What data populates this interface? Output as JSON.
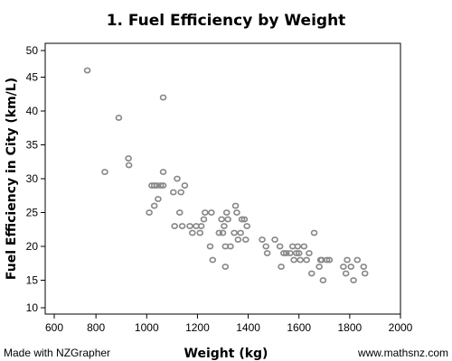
{
  "chart_data": {
    "type": "scatter",
    "title": "1. Fuel Efficiency by Weight",
    "xlabel": "Weight (kg)",
    "ylabel": "Fuel Efficiency in City (km/L)",
    "xlim": [
      600,
      2000
    ],
    "ylim": [
      10,
      50
    ],
    "xticks": [
      600,
      800,
      1000,
      1200,
      1400,
      1600,
      1800,
      2000
    ],
    "yticks": [
      10,
      15,
      20,
      25,
      30,
      35,
      40,
      45,
      50
    ],
    "grid": false,
    "marker_color": "#888888",
    "points": [
      [
        766,
        46
      ],
      [
        835,
        31
      ],
      [
        890,
        39
      ],
      [
        928,
        33
      ],
      [
        930,
        32
      ],
      [
        1065,
        42
      ],
      [
        1065,
        31
      ],
      [
        1010,
        25
      ],
      [
        1020,
        29
      ],
      [
        1030,
        29
      ],
      [
        1040,
        29
      ],
      [
        1055,
        29
      ],
      [
        1065,
        29
      ],
      [
        1030,
        26
      ],
      [
        1045,
        27
      ],
      [
        1105,
        28
      ],
      [
        1120,
        30
      ],
      [
        1135,
        28
      ],
      [
        1150,
        29
      ],
      [
        1110,
        23
      ],
      [
        1130,
        25
      ],
      [
        1140,
        23
      ],
      [
        1170,
        23
      ],
      [
        1195,
        23
      ],
      [
        1215,
        23
      ],
      [
        1180,
        22
      ],
      [
        1210,
        22
      ],
      [
        1225,
        24
      ],
      [
        1230,
        25
      ],
      [
        1255,
        25
      ],
      [
        1250,
        20
      ],
      [
        1260,
        18
      ],
      [
        1285,
        22
      ],
      [
        1295,
        24
      ],
      [
        1300,
        22
      ],
      [
        1305,
        23
      ],
      [
        1310,
        20
      ],
      [
        1315,
        25
      ],
      [
        1320,
        24
      ],
      [
        1330,
        20
      ],
      [
        1310,
        17
      ],
      [
        1345,
        22
      ],
      [
        1350,
        26
      ],
      [
        1355,
        25
      ],
      [
        1360,
        21
      ],
      [
        1370,
        22
      ],
      [
        1375,
        24
      ],
      [
        1385,
        24
      ],
      [
        1390,
        21
      ],
      [
        1395,
        23
      ],
      [
        1455,
        21
      ],
      [
        1470,
        20
      ],
      [
        1475,
        19
      ],
      [
        1505,
        21
      ],
      [
        1525,
        20
      ],
      [
        1530,
        17
      ],
      [
        1540,
        19
      ],
      [
        1550,
        19
      ],
      [
        1565,
        19
      ],
      [
        1575,
        20
      ],
      [
        1580,
        18
      ],
      [
        1590,
        19
      ],
      [
        1595,
        20
      ],
      [
        1600,
        19
      ],
      [
        1605,
        18
      ],
      [
        1620,
        20
      ],
      [
        1630,
        18
      ],
      [
        1640,
        19
      ],
      [
        1650,
        16
      ],
      [
        1660,
        22
      ],
      [
        1680,
        17
      ],
      [
        1685,
        18
      ],
      [
        1690,
        18
      ],
      [
        1695,
        15
      ],
      [
        1710,
        18
      ],
      [
        1720,
        18
      ],
      [
        1775,
        17
      ],
      [
        1785,
        16
      ],
      [
        1790,
        18
      ],
      [
        1805,
        17
      ],
      [
        1815,
        15
      ],
      [
        1830,
        18
      ],
      [
        1855,
        17
      ],
      [
        1860,
        16
      ]
    ]
  },
  "footer": {
    "left": "Made with NZGrapher",
    "right": "www.mathsnz.com"
  }
}
